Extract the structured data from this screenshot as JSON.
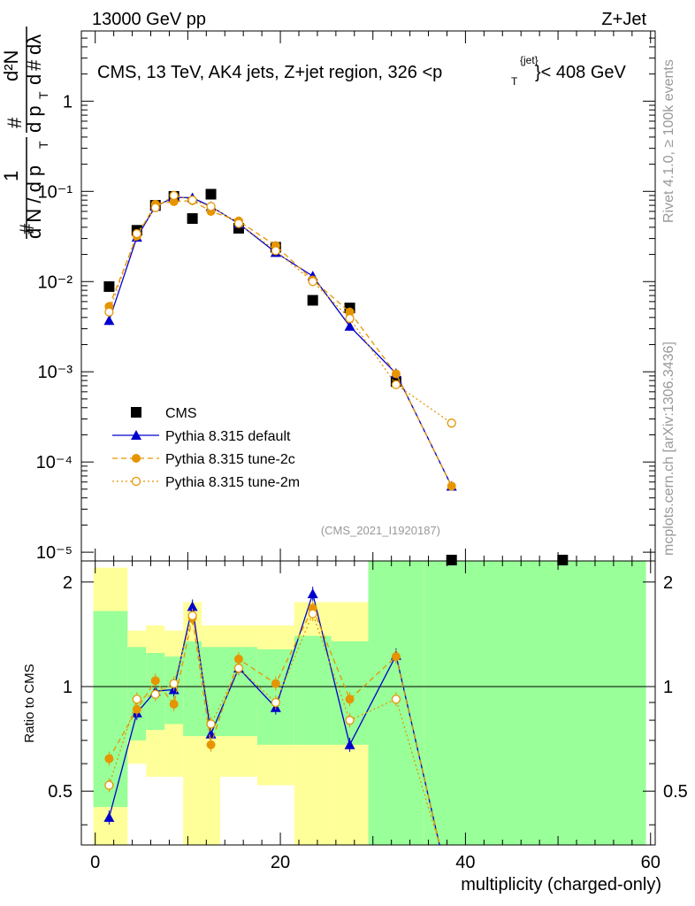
{
  "header": {
    "left": "13000 GeV pp",
    "right": "Z+Jet"
  },
  "side_labels": {
    "rivet": "Rivet 4.1.0, ≥ 100k events",
    "mcplots": "mcplots.cern.ch [arXiv:1306.3436]"
  },
  "chart_data": {
    "type": "scatter",
    "title": "CMS, 13 TeV, AK4 jets, Z+jet region, 326 < pT jet < 408 GeV",
    "title_text": "CMS, 13 TeV, AK4 jets, Z+jet region, 326 <p",
    "title_sup": "{jet}",
    "title_sub": "T",
    "title_end": "}< 408 GeV",
    "analysis_label": "(CMS_2021_I1920187)",
    "xlabel": "multiplicity (charged-only)",
    "ylabel_main": "1/(dN/dpT) d²N/(dpT dλ)",
    "ylabel_ratio": "Ratio to CMS",
    "xlim": [
      -1.5,
      60.5
    ],
    "ylim_main": [
      8e-06,
      6
    ],
    "ylim_ratio": [
      0.35,
      2.3
    ],
    "x_ticks": [
      "0",
      "20",
      "40",
      "60"
    ],
    "x_tick_values": [
      0,
      20,
      40,
      60
    ],
    "y_ticks_main": [
      "1",
      "10⁻¹",
      "10⁻²",
      "10⁻³",
      "10⁻⁴",
      "10⁻⁵"
    ],
    "y_tick_values_main": [
      1,
      0.1,
      0.01,
      0.001,
      0.0001,
      1e-05
    ],
    "y_ticks_ratio": [
      "2",
      "1",
      "0.5"
    ],
    "y_tick_values_ratio": [
      2,
      1,
      0.5
    ],
    "legend": [
      {
        "label": "CMS",
        "marker": "square",
        "color": "#000000"
      },
      {
        "label": "Pythia 8.315 default",
        "marker": "triangle",
        "color": "#0000cc"
      },
      {
        "label": "Pythia 8.315 tune-2c",
        "marker": "circle",
        "color": "#e69500"
      },
      {
        "label": "Pythia 8.315 tune-2m",
        "marker": "open-circle",
        "color": "#e69500"
      }
    ],
    "x": [
      1.5,
      4.5,
      6.5,
      8.5,
      10.5,
      12.5,
      15.5,
      19.5,
      23.5,
      27.5,
      32.5,
      38.5,
      50.5
    ],
    "series": [
      {
        "name": "CMS",
        "values": [
          0.0088,
          0.037,
          0.07,
          0.088,
          0.05,
          0.093,
          0.039,
          0.024,
          0.0062,
          0.0051,
          0.00078,
          7.5e-06,
          7.5e-06
        ]
      },
      {
        "name": "Pythia 8.315 default",
        "values": [
          0.0037,
          0.031,
          0.068,
          0.086,
          0.085,
          0.068,
          0.044,
          0.021,
          0.0115,
          0.0032,
          0.00096,
          5.4e-05,
          null
        ]
      },
      {
        "name": "Pythia 8.315 tune-2c",
        "values": [
          0.0053,
          0.032,
          0.072,
          0.077,
          0.079,
          0.06,
          0.047,
          0.025,
          0.0104,
          0.0046,
          0.00095,
          5.4e-05,
          null
        ]
      },
      {
        "name": "Pythia 8.315 tune-2m",
        "values": [
          0.0046,
          0.034,
          0.066,
          0.09,
          0.08,
          0.068,
          0.044,
          0.022,
          0.01,
          0.0039,
          0.00072,
          0.00027,
          null
        ]
      }
    ],
    "ratio_x": [
      1.5,
      4.5,
      6.5,
      8.5,
      10.5,
      12.5,
      15.5,
      19.5,
      23.5,
      27.5,
      32.5
    ],
    "ratio_series": [
      {
        "name": "Pythia 8.315 default",
        "values": [
          0.42,
          0.84,
          0.97,
          0.98,
          1.7,
          0.73,
          1.13,
          0.87,
          1.85,
          0.68,
          1.23
        ]
      },
      {
        "name": "Pythia 8.315 tune-2c",
        "values": [
          0.62,
          0.86,
          1.04,
          0.89,
          1.58,
          0.68,
          1.2,
          1.02,
          1.68,
          0.92,
          1.22
        ]
      },
      {
        "name": "Pythia 8.315 tune-2m",
        "values": [
          0.52,
          0.92,
          0.95,
          1.02,
          1.6,
          0.78,
          1.13,
          0.9,
          1.62,
          0.8,
          0.92
        ]
      }
    ],
    "uncertainty_bins": [
      {
        "x0": -0.2,
        "x1": 3.5,
        "stat": [
          0.45,
          1.65
        ],
        "total": [
          0.35,
          2.2
        ]
      },
      {
        "x0": 3.5,
        "x1": 5.5,
        "stat": [
          0.7,
          1.3
        ],
        "total": [
          0.6,
          1.45
        ]
      },
      {
        "x0": 5.5,
        "x1": 7.5,
        "stat": [
          0.75,
          1.25
        ],
        "total": [
          0.55,
          1.5
        ]
      },
      {
        "x0": 7.5,
        "x1": 9.5,
        "stat": [
          0.78,
          1.22
        ],
        "total": [
          0.55,
          1.45
        ]
      },
      {
        "x0": 9.5,
        "x1": 11.5,
        "stat": [
          0.72,
          1.35
        ],
        "total": [
          0.35,
          1.75
        ]
      },
      {
        "x0": 11.5,
        "x1": 13.5,
        "stat": [
          0.72,
          1.3
        ],
        "total": [
          0.35,
          1.5
        ]
      },
      {
        "x0": 13.5,
        "x1": 17.5,
        "stat": [
          0.72,
          1.3
        ],
        "total": [
          0.55,
          1.5
        ]
      },
      {
        "x0": 17.5,
        "x1": 21.5,
        "stat": [
          0.68,
          1.28
        ],
        "total": [
          0.52,
          1.5
        ]
      },
      {
        "x0": 21.5,
        "x1": 25.5,
        "stat": [
          0.68,
          1.4
        ],
        "total": [
          0.35,
          1.75
        ]
      },
      {
        "x0": 25.5,
        "x1": 29.5,
        "stat": [
          0.68,
          1.35
        ],
        "total": [
          0.35,
          1.75
        ]
      },
      {
        "x0": 29.5,
        "x1": 35.5,
        "stat": [
          0.35,
          2.3
        ],
        "total": [
          0.35,
          2.3
        ]
      },
      {
        "x0": 35.5,
        "x1": 59.5,
        "stat": [
          0.35,
          2.3
        ],
        "total": [
          0.35,
          2.3
        ]
      }
    ]
  }
}
